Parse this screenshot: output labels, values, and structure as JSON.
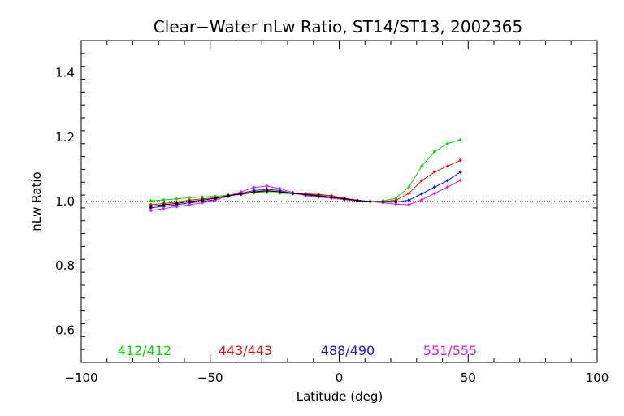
{
  "chart_data": {
    "type": "line",
    "title": "Clear−Water nLw Ratio, ST14/ST13, 2002365",
    "xlabel": "Latitude (deg)",
    "ylabel": "nLw Ratio",
    "xlim": [
      -100,
      100
    ],
    "ylim": [
      0.5,
      1.5
    ],
    "xticks": [
      -100,
      -50,
      0,
      50,
      100
    ],
    "xtick_labels": [
      "−100",
      "−50",
      "0",
      "50",
      "100"
    ],
    "yticks": [
      0.6,
      0.8,
      1.0,
      1.2,
      1.4
    ],
    "ytick_labels": [
      "0.6",
      "0.8",
      "1.0",
      "1.2",
      "1.4"
    ],
    "reference_line": 1.0,
    "grid": false,
    "legend_position": "bottom",
    "x": [
      -73,
      -68,
      -63,
      -58,
      -53,
      -48,
      -43,
      -38,
      -33,
      -28,
      -23,
      -18,
      -13,
      -8,
      -3,
      2,
      7,
      12,
      17,
      22,
      27,
      32,
      37,
      42,
      47
    ],
    "series": [
      {
        "name": "412/412",
        "color": "#00e000",
        "values": [
          1.002,
          1.005,
          1.008,
          1.012,
          1.014,
          1.016,
          1.02,
          1.024,
          1.027,
          1.028,
          1.026,
          1.024,
          1.022,
          1.02,
          1.018,
          1.01,
          1.004,
          1.0,
          1.002,
          1.01,
          1.045,
          1.11,
          1.155,
          1.18,
          1.192
        ]
      },
      {
        "name": "443/443",
        "color": "#ee1111",
        "values": [
          0.99,
          0.994,
          0.998,
          1.004,
          1.008,
          1.012,
          1.018,
          1.022,
          1.028,
          1.032,
          1.03,
          1.026,
          1.024,
          1.022,
          1.018,
          1.01,
          1.004,
          1.0,
          1.0,
          1.004,
          1.025,
          1.065,
          1.092,
          1.11,
          1.128
        ]
      },
      {
        "name": "488/490",
        "color": "#1a1ae6",
        "values": [
          0.98,
          0.985,
          0.99,
          0.996,
          1.0,
          1.006,
          1.016,
          1.026,
          1.034,
          1.038,
          1.034,
          1.026,
          1.02,
          1.016,
          1.012,
          1.006,
          1.002,
          1.0,
          0.998,
          0.998,
          1.004,
          1.024,
          1.045,
          1.065,
          1.092
        ]
      },
      {
        "name": "551/555",
        "color": "#e020e0",
        "values": [
          0.972,
          0.978,
          0.984,
          0.99,
          0.996,
          1.004,
          1.018,
          1.03,
          1.044,
          1.048,
          1.04,
          1.028,
          1.018,
          1.014,
          1.01,
          1.006,
          1.002,
          1.0,
          0.996,
          0.992,
          0.99,
          1.005,
          1.025,
          1.045,
          1.066
        ]
      }
    ],
    "overlay_series": {
      "color": "#000000",
      "values": [
        0.985,
        0.99,
        0.994,
        1.0,
        1.004,
        1.01,
        1.018,
        1.024,
        1.03,
        1.034,
        1.03,
        1.025,
        1.022,
        1.018,
        1.014,
        1.008,
        1.003,
        1.0,
        0.999,
        1.0
      ]
    }
  }
}
